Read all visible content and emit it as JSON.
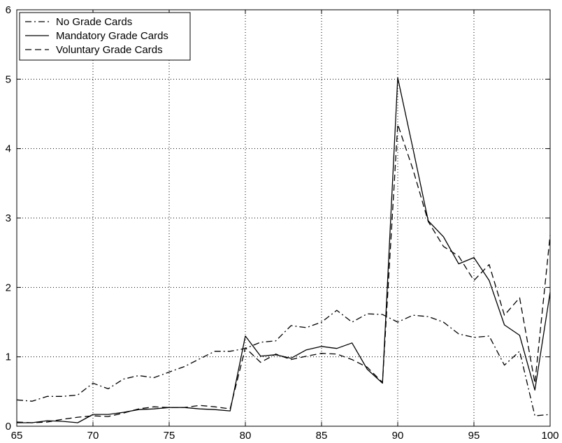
{
  "chart_data": {
    "type": "line",
    "title": "",
    "xlabel": "",
    "ylabel": "",
    "xlim": [
      65,
      100
    ],
    "ylim": [
      0,
      6
    ],
    "xticks": [
      65,
      70,
      75,
      80,
      85,
      90,
      95,
      100
    ],
    "yticks": [
      0,
      1,
      2,
      3,
      4,
      5,
      6
    ],
    "grid": true,
    "legend_position": "top-left",
    "x": [
      65,
      66,
      67,
      68,
      69,
      70,
      71,
      72,
      73,
      74,
      75,
      76,
      77,
      78,
      79,
      80,
      81,
      82,
      83,
      84,
      85,
      86,
      87,
      88,
      89,
      90,
      91,
      92,
      93,
      94,
      95,
      96,
      97,
      98,
      99,
      100
    ],
    "series": [
      {
        "name": "No Grade Cards",
        "style": "dash-dot",
        "color": "#000000",
        "values": [
          0.38,
          0.36,
          0.43,
          0.43,
          0.45,
          0.62,
          0.54,
          0.68,
          0.73,
          0.7,
          0.78,
          0.86,
          0.97,
          1.08,
          1.08,
          1.12,
          1.21,
          1.23,
          1.45,
          1.42,
          1.5,
          1.67,
          1.5,
          1.62,
          1.61,
          1.5,
          1.6,
          1.58,
          1.5,
          1.33,
          1.28,
          1.3,
          0.88,
          1.08,
          0.15,
          0.17
        ]
      },
      {
        "name": "Mandatory Grade Cards",
        "style": "solid",
        "color": "#000000",
        "values": [
          0.05,
          0.05,
          0.08,
          0.07,
          0.05,
          0.17,
          0.17,
          0.2,
          0.24,
          0.25,
          0.27,
          0.27,
          0.25,
          0.24,
          0.22,
          1.3,
          1.01,
          1.03,
          0.98,
          1.1,
          1.15,
          1.12,
          1.2,
          0.82,
          0.62,
          5.02,
          4.0,
          2.96,
          2.73,
          2.34,
          2.43,
          2.1,
          1.46,
          1.31,
          0.52,
          1.93
        ]
      },
      {
        "name": "Voluntary Grade Cards",
        "style": "dashed",
        "color": "#000000",
        "values": [
          0.06,
          0.05,
          0.06,
          0.1,
          0.13,
          0.15,
          0.14,
          0.19,
          0.25,
          0.28,
          0.27,
          0.27,
          0.3,
          0.28,
          0.25,
          1.13,
          0.92,
          1.04,
          0.96,
          1.01,
          1.05,
          1.04,
          0.96,
          0.85,
          0.63,
          4.35,
          3.7,
          2.95,
          2.59,
          2.45,
          2.1,
          2.33,
          1.6,
          1.85,
          0.62,
          2.75
        ]
      }
    ]
  }
}
